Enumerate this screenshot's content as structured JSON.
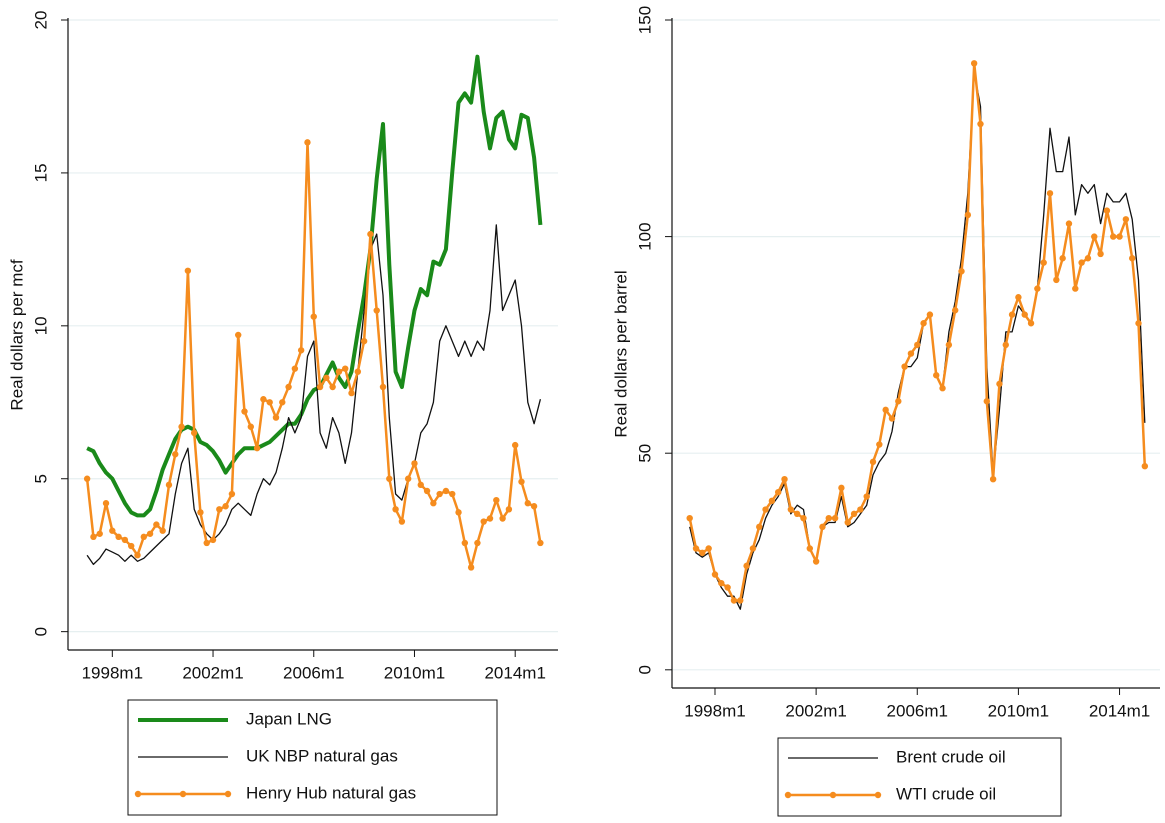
{
  "chart_data": [
    {
      "type": "line",
      "ylabel": "Real dollars per mcf",
      "x": [
        "1997m1",
        "1997m4",
        "1997m7",
        "1997m10",
        "1998m1",
        "1998m4",
        "1998m7",
        "1998m10",
        "1999m1",
        "1999m4",
        "1999m7",
        "1999m10",
        "2000m1",
        "2000m4",
        "2000m7",
        "2000m10",
        "2001m1",
        "2001m4",
        "2001m7",
        "2001m10",
        "2002m1",
        "2002m4",
        "2002m7",
        "2002m10",
        "2003m1",
        "2003m4",
        "2003m7",
        "2003m10",
        "2004m1",
        "2004m4",
        "2004m7",
        "2004m10",
        "2005m1",
        "2005m4",
        "2005m7",
        "2005m10",
        "2006m1",
        "2006m4",
        "2006m7",
        "2006m10",
        "2007m1",
        "2007m4",
        "2007m7",
        "2007m10",
        "2008m1",
        "2008m4",
        "2008m7",
        "2008m10",
        "2009m1",
        "2009m4",
        "2009m7",
        "2009m10",
        "2010m1",
        "2010m4",
        "2010m7",
        "2010m10",
        "2011m1",
        "2011m4",
        "2011m7",
        "2011m10",
        "2012m1",
        "2012m4",
        "2012m7",
        "2012m10",
        "2013m1",
        "2013m4",
        "2013m7",
        "2013m10",
        "2014m1",
        "2014m4",
        "2014m7",
        "2014m10",
        "2015m1"
      ],
      "xlim": [
        1996.24,
        2015.7
      ],
      "xticks": [
        {
          "value": 1998,
          "label": "1998m1"
        },
        {
          "value": 2002,
          "label": "2002m1"
        },
        {
          "value": 2006,
          "label": "2006m1"
        },
        {
          "value": 2010,
          "label": "2010m1"
        },
        {
          "value": 2014,
          "label": "2014m1"
        }
      ],
      "ylim": [
        -0.6,
        20
      ],
      "yticks": [
        0,
        5,
        10,
        15,
        20
      ],
      "grid": true,
      "series": [
        {
          "name": "Japan LNG",
          "color": "#1a8a1a",
          "line_width": 4,
          "marker": false,
          "values": [
            6.0,
            5.9,
            5.5,
            5.2,
            5.0,
            4.6,
            4.2,
            3.9,
            3.8,
            3.8,
            4.0,
            4.6,
            5.3,
            5.8,
            6.3,
            6.6,
            6.7,
            6.6,
            6.2,
            6.1,
            5.9,
            5.6,
            5.2,
            5.5,
            5.8,
            6.0,
            6.0,
            6.0,
            6.1,
            6.2,
            6.4,
            6.6,
            6.8,
            6.8,
            7.1,
            7.6,
            7.9,
            8.0,
            8.4,
            8.8,
            8.3,
            8.0,
            8.5,
            9.8,
            11.0,
            12.5,
            14.8,
            16.6,
            12.0,
            8.5,
            8.0,
            9.3,
            10.5,
            11.2,
            11.0,
            12.1,
            12.0,
            12.5,
            15.0,
            17.3,
            17.6,
            17.3,
            18.8,
            17.0,
            15.8,
            16.8,
            17.0,
            16.1,
            15.8,
            16.9,
            16.8,
            15.5,
            13.3
          ]
        },
        {
          "name": "UK NBP natural gas",
          "color": "#111111",
          "line_width": 1.3,
          "marker": false,
          "values": [
            2.5,
            2.2,
            2.4,
            2.7,
            2.6,
            2.5,
            2.3,
            2.5,
            2.3,
            2.4,
            2.6,
            2.8,
            3.0,
            3.2,
            4.5,
            5.5,
            6.0,
            4.0,
            3.5,
            3.2,
            3.0,
            3.2,
            3.5,
            4.0,
            4.2,
            4.0,
            3.8,
            4.5,
            5.0,
            4.8,
            5.2,
            6.0,
            7.0,
            6.5,
            7.0,
            9.0,
            9.5,
            6.5,
            6.0,
            7.0,
            6.5,
            5.5,
            6.5,
            8.5,
            10.5,
            12.5,
            13.0,
            11.0,
            7.0,
            4.5,
            4.3,
            5.0,
            5.5,
            6.5,
            6.8,
            7.5,
            9.5,
            10.0,
            9.5,
            9.0,
            9.5,
            9.0,
            9.5,
            9.2,
            10.5,
            13.3,
            10.5,
            11.0,
            11.5,
            10.0,
            7.5,
            6.8,
            7.6
          ]
        },
        {
          "name": "Henry Hub natural gas",
          "color": "#f58c1e",
          "line_width": 2.5,
          "marker": true,
          "values": [
            5.0,
            3.1,
            3.2,
            4.2,
            3.3,
            3.1,
            3.0,
            2.8,
            2.5,
            3.1,
            3.2,
            3.5,
            3.3,
            4.8,
            5.8,
            6.7,
            11.8,
            6.5,
            3.9,
            2.9,
            3.0,
            4.0,
            4.1,
            4.5,
            9.7,
            7.2,
            6.7,
            6.0,
            7.6,
            7.5,
            7.0,
            7.5,
            8.0,
            8.6,
            9.2,
            16.0,
            10.3,
            8.0,
            8.3,
            8.0,
            8.5,
            8.6,
            7.8,
            8.5,
            9.5,
            13.0,
            10.5,
            8.0,
            5.0,
            4.0,
            3.6,
            5.0,
            5.5,
            4.8,
            4.6,
            4.2,
            4.5,
            4.6,
            4.5,
            3.9,
            2.9,
            2.1,
            2.9,
            3.6,
            3.7,
            4.3,
            3.7,
            4.0,
            6.1,
            4.9,
            4.2,
            4.1,
            2.9
          ]
        }
      ]
    },
    {
      "type": "line",
      "ylabel": "Real dollars per barrel",
      "x": [
        "1997m1",
        "1997m4",
        "1997m7",
        "1997m10",
        "1998m1",
        "1998m4",
        "1998m7",
        "1998m10",
        "1999m1",
        "1999m4",
        "1999m7",
        "1999m10",
        "2000m1",
        "2000m4",
        "2000m7",
        "2000m10",
        "2001m1",
        "2001m4",
        "2001m7",
        "2001m10",
        "2002m1",
        "2002m4",
        "2002m7",
        "2002m10",
        "2003m1",
        "2003m4",
        "2003m7",
        "2003m10",
        "2004m1",
        "2004m4",
        "2004m7",
        "2004m10",
        "2005m1",
        "2005m4",
        "2005m7",
        "2005m10",
        "2006m1",
        "2006m4",
        "2006m7",
        "2006m10",
        "2007m1",
        "2007m4",
        "2007m7",
        "2007m10",
        "2008m1",
        "2008m4",
        "2008m7",
        "2008m10",
        "2009m1",
        "2009m4",
        "2009m7",
        "2009m10",
        "2010m1",
        "2010m4",
        "2010m7",
        "2010m10",
        "2011m1",
        "2011m4",
        "2011m7",
        "2011m10",
        "2012m1",
        "2012m4",
        "2012m7",
        "2012m10",
        "2013m1",
        "2013m4",
        "2013m7",
        "2013m10",
        "2014m1",
        "2014m4",
        "2014m7",
        "2014m10",
        "2015m1"
      ],
      "xlim": [
        1996.3,
        2015.6
      ],
      "xticks": [
        {
          "value": 1998,
          "label": "1998m1"
        },
        {
          "value": 2002,
          "label": "2002m1"
        },
        {
          "value": 2006,
          "label": "2006m1"
        },
        {
          "value": 2010,
          "label": "2010m1"
        },
        {
          "value": 2014,
          "label": "2014m1"
        }
      ],
      "ylim": [
        -4.2,
        150
      ],
      "yticks": [
        0,
        50,
        100,
        150
      ],
      "grid": true,
      "series": [
        {
          "name": "Brent crude oil",
          "color": "#111111",
          "line_width": 1.3,
          "marker": false,
          "values": [
            33,
            27,
            26,
            27,
            22,
            19,
            17,
            17,
            14,
            22,
            27,
            30,
            35,
            38,
            40,
            43,
            36,
            38,
            37,
            28,
            25,
            33,
            34,
            34,
            40,
            33,
            34,
            36,
            38,
            45,
            48,
            50,
            55,
            64,
            70,
            70,
            72,
            80,
            82,
            68,
            65,
            78,
            85,
            95,
            110,
            138,
            130,
            70,
            45,
            60,
            78,
            78,
            84,
            82,
            80,
            88,
            105,
            125,
            115,
            115,
            123,
            105,
            112,
            110,
            112,
            103,
            110,
            108,
            108,
            110,
            104,
            90,
            57
          ]
        },
        {
          "name": "WTI crude oil",
          "color": "#f58c1e",
          "line_width": 2.5,
          "marker": true,
          "values": [
            35,
            28,
            27,
            28,
            22,
            20,
            19,
            16,
            16,
            24,
            28,
            33,
            37,
            39,
            41,
            44,
            37,
            36,
            35,
            28,
            25,
            33,
            35,
            35,
            42,
            34,
            36,
            37,
            40,
            48,
            52,
            60,
            58,
            62,
            70,
            73,
            75,
            80,
            82,
            68,
            65,
            75,
            83,
            92,
            105,
            140,
            126,
            62,
            44,
            66,
            75,
            82,
            86,
            82,
            80,
            88,
            94,
            110,
            90,
            95,
            103,
            88,
            94,
            95,
            100,
            96,
            106,
            100,
            100,
            104,
            95,
            80,
            47
          ]
        }
      ]
    }
  ]
}
